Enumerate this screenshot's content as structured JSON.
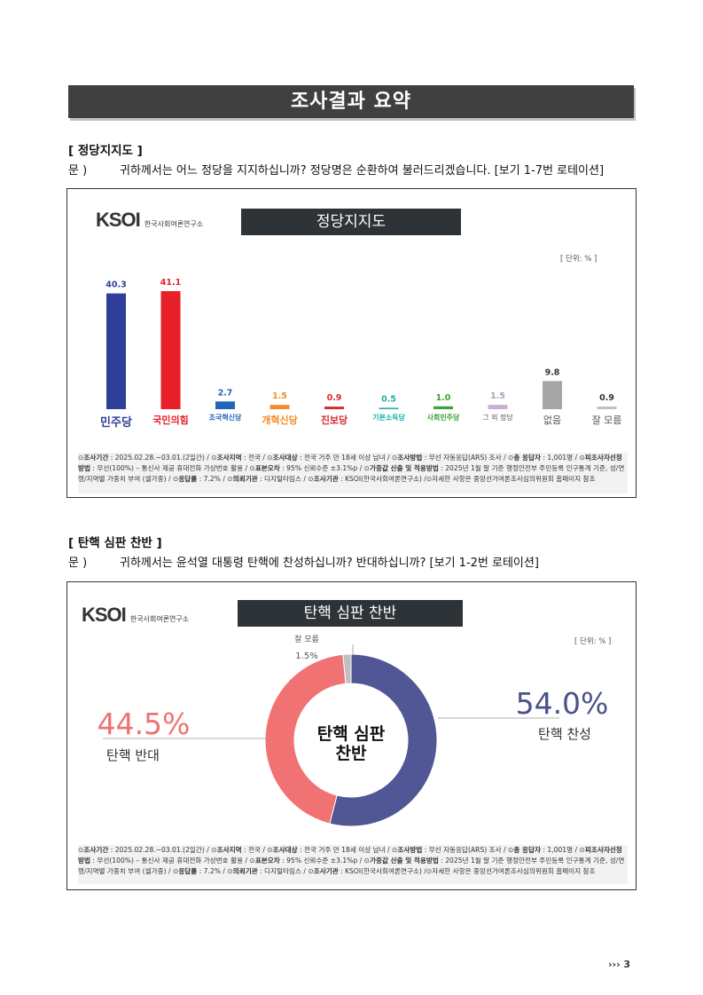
{
  "page_title": "조사결과 요약",
  "section1": {
    "heading": "[ 정당지지도 ]",
    "question_label": "문 )",
    "question_text": "귀하께서는 어느 정당을 지지하십니까? 정당명은 순환하여 불러드리겠습니다. [보기 1-7번 로테이션]"
  },
  "chart1": {
    "logo_text": "KSOI",
    "logo_sub": "한국사회여론연구소",
    "title": "정당지지도",
    "unit": "[ 단위: % ]",
    "note_html": "⊙<b>조사기간</b> : 2025.02.28.~03.01.(2일간)   / ⊙<b>조사지역</b> : 전국 / ⊙<b>조사대상</b> : 전국 거주 만 18세 이상 남녀 / ⊙<b>조사방법</b> : 무선 자동응답(ARS) 조사 / ⊙<b>총 응답자</b> : 1,001명 / ⊙<b>피조사자선정방법</b> : 무선(100%) – 통신사 제공 휴대전화 가상번호 활용 / ⊙<b>표본오차</b> : 95% 신뢰수준 ±3.1%p / ⊙<b>가중값 산출 및 적용방법</b> : 2025년 1월 말 기준 행정안전부 주민등록 인구통계 기준, 성/연령/지역별 가중치 부여 (셀가중) / ⊙<b>응답률</b> : 7.2% / ⊙<b>의뢰기관</b> : 디지털타임스 / ⊙<b>조사기관</b> : KSOI(한국사회여론연구소) /⊙자세한 사항은 중앙선거여론조사심의위원회 홈페이지 참조"
  },
  "chart_data": [
    {
      "type": "bar",
      "title": "정당지지도",
      "categories": [
        "민주당",
        "국민의힘",
        "조국혁신당",
        "개혁신당",
        "진보당",
        "기본소득당",
        "사회민주당",
        "그 외 정당",
        "없음",
        "잘 모름"
      ],
      "values": [
        40.3,
        41.1,
        2.7,
        1.5,
        0.9,
        0.5,
        1.0,
        1.5,
        9.8,
        0.9
      ],
      "value_labels": [
        "40.3",
        "41.1",
        "2.7",
        "1.5",
        "0.9",
        "0.5",
        "1.0",
        "1.5",
        "9.8",
        "0.9"
      ],
      "colors": [
        "#2f3f99",
        "#e8202a",
        "#1f66b8",
        "#f28b28",
        "#d72b2b",
        "#1fb1a8",
        "#3aa33a",
        "#c8b0d0",
        "#a6a6a6",
        "#bfbfbf"
      ],
      "label_colors": [
        "#2f3f99",
        "#e8202a",
        "#1f66b8",
        "#f28b28",
        "#d72b2b",
        "#1fb1a8",
        "#3aa33a",
        "#b39ac0",
        "#333333",
        "#333333"
      ],
      "ylim": [
        0,
        45
      ],
      "xlabel": "",
      "ylabel": "",
      "grid": false
    },
    {
      "type": "pie",
      "title": "탄핵 심판 찬반",
      "categories": [
        "탄핵 찬성",
        "탄핵 반대",
        "잘 모름"
      ],
      "values": [
        54.0,
        44.5,
        1.5
      ],
      "value_labels": [
        "54.0%",
        "44.5%",
        "1.5%"
      ],
      "colors": [
        "#515795",
        "#f07272",
        "#bfbfbf"
      ],
      "donut": true
    }
  ],
  "section2": {
    "heading": "[ 탄핵 심판 찬반 ]",
    "question_label": "문 )",
    "question_text": "귀하께서는 윤석열 대통령 탄핵에 찬성하십니까? 반대하십니까? [보기 1-2번 로테이션]"
  },
  "chart2": {
    "logo_text": "KSOI",
    "logo_sub": "한국사회여론연구소",
    "title": "탄핵 심판 찬반",
    "unit": "[ 단위: % ]",
    "center_line1": "탄핵 심판",
    "center_line2": "찬반",
    "note_html": "⊙<b>조사기간</b> : 2025.02.28.~03.01.(2일간)   / ⊙<b>조사지역</b> : 전국 / ⊙<b>조사대상</b> : 전국 거주 만 18세 이상 남녀 / ⊙<b>조사방법</b> : 무선 자동응답(ARS) 조사 / ⊙<b>총 응답자</b> : 1,001명 / ⊙<b>피조사자선정방법</b> : 무선(100%) – 통신사 제공 휴대전화 가상번호 활용 / ⊙<b>표본오차</b> : 95% 신뢰수준 ±3.1%p / ⊙<b>가중값 산출 및 적용방법</b> : 2025년 1월 말 기준 행정안전부 주민등록 인구통계 기준, 성/연령/지역별 가중치 부여 (셀가중) / ⊙<b>응답률</b> : 7.2% / ⊙<b>의뢰기관</b> : 디지털타임스 / ⊙<b>조사기관</b> : KSOI(한국사회여론연구소) /⊙자세한 사항은 중앙선거여론조사심의위원회 홈페이지 참조"
  },
  "footer": {
    "page_number": "››› 3"
  }
}
